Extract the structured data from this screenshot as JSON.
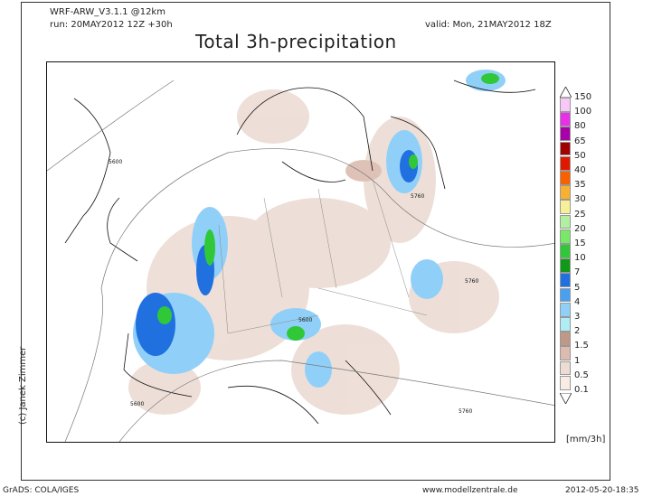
{
  "header": {
    "model": "WRF-ARW_V3.1.1 @12km",
    "run": "run: 20MAY2012 12Z +30h",
    "valid": "valid: Mon, 21MAY2012 18Z",
    "title": "Total 3h-precipitation"
  },
  "map": {
    "credit": "(c) Janek Zimmer",
    "contour_labels": [
      "5600",
      "5760",
      "5760",
      "5600",
      "5600",
      "5760"
    ]
  },
  "colorbar": {
    "unit": "[mm/3h]",
    "levels": [
      {
        "label": "150",
        "color": "#f8c8f8"
      },
      {
        "label": "100",
        "color": "#e830e8"
      },
      {
        "label": "80",
        "color": "#a800a8"
      },
      {
        "label": "65",
        "color": "#a00000"
      },
      {
        "label": "50",
        "color": "#e01800"
      },
      {
        "label": "40",
        "color": "#f86000"
      },
      {
        "label": "35",
        "color": "#f8b030"
      },
      {
        "label": "30",
        "color": "#f8f098"
      },
      {
        "label": "25",
        "color": "#b0f0a0"
      },
      {
        "label": "20",
        "color": "#78e868"
      },
      {
        "label": "15",
        "color": "#30c838"
      },
      {
        "label": "10",
        "color": "#109818"
      },
      {
        "label": "7",
        "color": "#2070e0"
      },
      {
        "label": "5",
        "color": "#48a0f0"
      },
      {
        "label": "4",
        "color": "#90d0f8"
      },
      {
        "label": "3",
        "color": "#b0ecf4"
      },
      {
        "label": "2",
        "color": "#c09888"
      },
      {
        "label": "1.5",
        "color": "#dcbcb0"
      },
      {
        "label": "1",
        "color": "#ecdcd4"
      },
      {
        "label": "0.5",
        "color": "#f8ece4"
      },
      {
        "label": "0.1",
        "color": "#ffffff"
      }
    ]
  },
  "footer": {
    "left": "GrADS: COLA/IGES",
    "center": "www.modellzentrale.de",
    "right": "2012-05-20-18:35"
  }
}
